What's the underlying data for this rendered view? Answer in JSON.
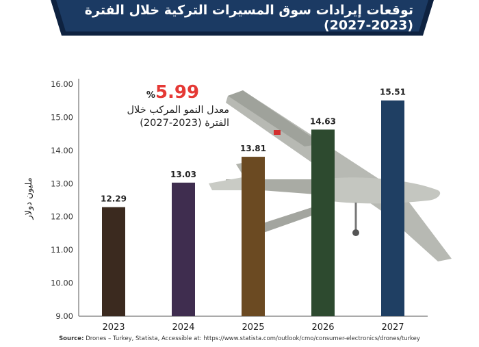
{
  "title": "توقعات إيرادات سوق المسيرات التركية خلال الفترة (2023-2027)",
  "growth": {
    "value": "5.99",
    "percent_sign": "%",
    "label_line1": "معدل النمو المركب خلال",
    "label_line2": "الفترة (2023-2027)"
  },
  "source": {
    "prefix": "Source:",
    "text": "Drones – Turkey, Statista, Accessible at: https://www.statista.com/outlook/cmo/consumer-electronics/drones/turkey"
  },
  "colors": {
    "banner": "#1b3a63",
    "banner_accent": "#0e2240",
    "value_highlight": "#e53935"
  },
  "chart_data": {
    "type": "bar",
    "categories": [
      "2023",
      "2024",
      "2025",
      "2026",
      "2027"
    ],
    "values": [
      12.29,
      13.03,
      13.81,
      14.63,
      15.51
    ],
    "bar_colors": [
      "#3b2a1f",
      "#3f2d4f",
      "#6b4a22",
      "#2d4a2f",
      "#1f3f63"
    ],
    "data_labels": [
      "12.29",
      "13.03",
      "13.81",
      "14.63",
      "15.51"
    ],
    "yticks": [
      "9.00",
      "10.00",
      "11.00",
      "12.00",
      "13.00",
      "14.00",
      "15.00",
      "16.00"
    ],
    "ylim": [
      9,
      16
    ],
    "ylabel": "مليون دولار",
    "xlabel": "",
    "grid": false
  }
}
